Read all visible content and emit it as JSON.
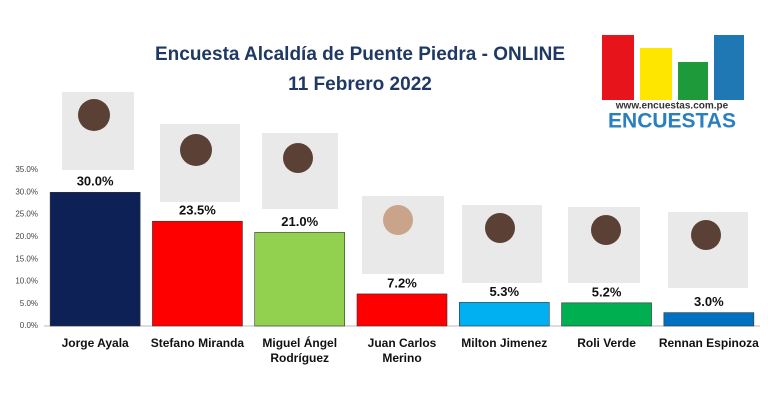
{
  "chart_data": {
    "type": "bar",
    "title": "Encuesta Alcaldía de Puente Piedra - ONLINE",
    "subtitle": "11 Febrero 2022",
    "categories": [
      "Jorge Ayala",
      "Stefano Miranda",
      "Miguel Ángel Rodríguez",
      "Juan Carlos Merino",
      "Milton Jimenez",
      "Roli Verde",
      "Rennan Espinoza"
    ],
    "values": [
      30.0,
      23.5,
      21.0,
      7.2,
      5.3,
      5.2,
      3.0
    ],
    "value_labels": [
      "30.0%",
      "23.5%",
      "21.0%",
      "7.2%",
      "5.3%",
      "5.2%",
      "3.0%"
    ],
    "colors": [
      "#0d2157",
      "#ff0000",
      "#92d050",
      "#ff0000",
      "#00b0f0",
      "#00b050",
      "#0070c0"
    ],
    "ylim": [
      0,
      35
    ],
    "yticks": [
      {
        "value": 0,
        "label": "0.0%"
      },
      {
        "value": 5,
        "label": "5.0%"
      },
      {
        "value": 10,
        "label": "10.0%"
      },
      {
        "value": 15,
        "label": "15.0%"
      },
      {
        "value": 20,
        "label": "20.0%"
      },
      {
        "value": 25,
        "label": "25.0%"
      },
      {
        "value": 30,
        "label": "30.0%"
      },
      {
        "value": 35,
        "label": "35.0%"
      }
    ],
    "grid": false
  },
  "logo": {
    "url": "www.encuestas.com.pe",
    "name": "ENCUESTAS"
  }
}
